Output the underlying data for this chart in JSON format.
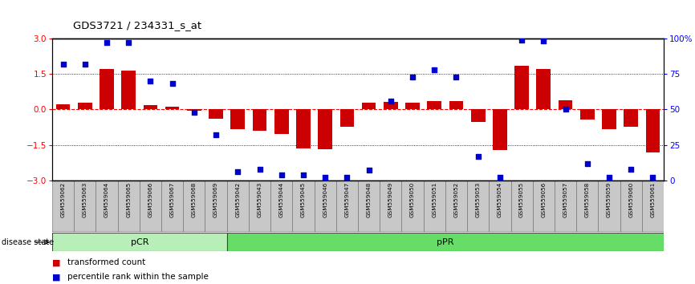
{
  "title": "GDS3721 / 234331_s_at",
  "samples": [
    "GSM559062",
    "GSM559063",
    "GSM559064",
    "GSM559065",
    "GSM559066",
    "GSM559067",
    "GSM559068",
    "GSM559069",
    "GSM559042",
    "GSM559043",
    "GSM559044",
    "GSM559045",
    "GSM559046",
    "GSM559047",
    "GSM559048",
    "GSM559049",
    "GSM559050",
    "GSM559051",
    "GSM559052",
    "GSM559053",
    "GSM559054",
    "GSM559055",
    "GSM559056",
    "GSM559057",
    "GSM559058",
    "GSM559059",
    "GSM559060",
    "GSM559061"
  ],
  "bar_values": [
    0.22,
    0.28,
    1.72,
    1.63,
    0.17,
    0.12,
    -0.05,
    -0.38,
    -0.85,
    -0.9,
    -1.05,
    -1.65,
    -1.68,
    -0.72,
    0.27,
    0.33,
    0.29,
    0.35,
    0.36,
    -0.52,
    -1.72,
    1.85,
    1.72,
    0.37,
    -0.42,
    -0.85,
    -0.72,
    -1.82
  ],
  "percentile_values": [
    82,
    82,
    97,
    97,
    70,
    68,
    48,
    32,
    6,
    8,
    4,
    4,
    2,
    2,
    7,
    56,
    73,
    78,
    73,
    17,
    2,
    99,
    98,
    50,
    12,
    2,
    8,
    2
  ],
  "pCR_count": 8,
  "ylim": [
    -3,
    3
  ],
  "yticks_left": [
    -3,
    -1.5,
    0,
    1.5,
    3
  ],
  "yticks_right_vals": [
    0,
    25,
    50,
    75,
    100
  ],
  "yticks_right_labels": [
    "0",
    "25",
    "50",
    "75",
    "100%"
  ],
  "bar_color": "#cc0000",
  "dot_color": "#0000cc",
  "background_color": "#ffffff",
  "pCR_color": "#b8eeb8",
  "pPR_color": "#66dd66",
  "label_box_color": "#c8c8c8",
  "disease_state_label": "disease state",
  "legend_bar": "transformed count",
  "legend_dot": "percentile rank within the sample"
}
